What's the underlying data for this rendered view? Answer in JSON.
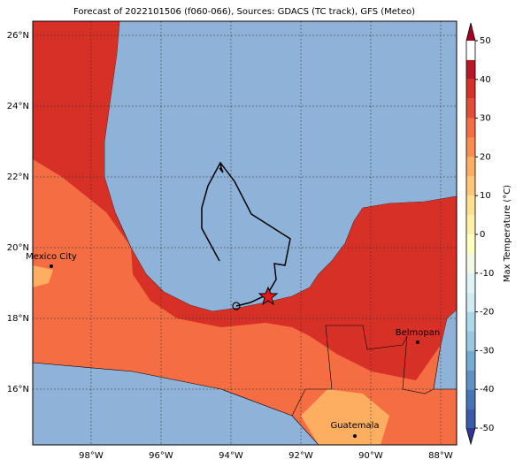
{
  "title": "Forecast of 2022101506 (f060-066), Sources: GDACS (TC track), GFS (Meteo)",
  "map": {
    "lon_labels": [
      {
        "value": -98,
        "label": "98°W"
      },
      {
        "value": -96,
        "label": "96°W"
      },
      {
        "value": -94,
        "label": "94°W"
      },
      {
        "value": -92,
        "label": "92°W"
      },
      {
        "value": -90,
        "label": "90°W"
      },
      {
        "value": -88,
        "label": "88°W"
      }
    ],
    "lat_labels": [
      {
        "value": 16,
        "label": "16°N"
      },
      {
        "value": 18,
        "label": "18°N"
      },
      {
        "value": 20,
        "label": "20°N"
      },
      {
        "value": 22,
        "label": "22°N"
      },
      {
        "value": 24,
        "label": "24°N"
      },
      {
        "value": 26,
        "label": "26°N"
      }
    ],
    "cities": [
      "Mexico City",
      "Belmopan",
      "Guatemala"
    ]
  },
  "colorbar": {
    "label": "Max Temperature (°C)",
    "ticks": [
      -50,
      -40,
      -30,
      -20,
      -10,
      0,
      10,
      20,
      30,
      40,
      50
    ],
    "colors": [
      "#313695",
      "#3a5ca8",
      "#4575b4",
      "#6191c3",
      "#74add1",
      "#9cc7e0",
      "#abd9e9",
      "#d0ebf2",
      "#e0f3f8",
      "#f2f9e5",
      "#ffffbf",
      "#fff0a8",
      "#fee090",
      "#fdc678",
      "#fdae61",
      "#f88d52",
      "#f46d43",
      "#e34d35",
      "#d73027",
      "#b8172a",
      "#a50026"
    ]
  }
}
